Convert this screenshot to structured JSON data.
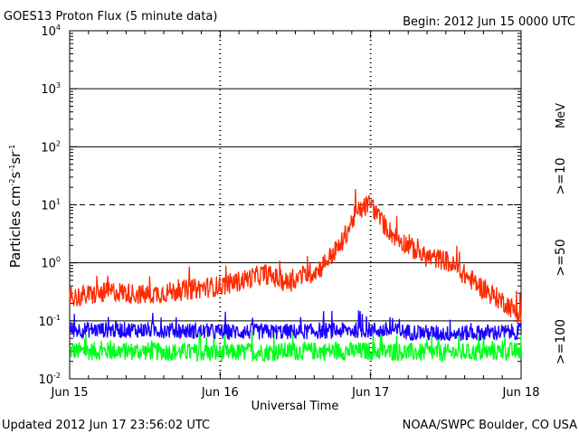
{
  "chart_data": {
    "type": "line",
    "title": "GOES13 Proton Flux (5 minute data)",
    "begin": "Begin: 2012 Jun 15 0000 UTC",
    "xlabel": "Universal Time",
    "ylabel": {
      "main": "Particles cm",
      "e1": "-2",
      "s1": "s",
      "e2": "-1",
      "sr": "sr",
      "e3": "-1"
    },
    "updated": "Updated 2012 Jun 17 23:56:02 UTC",
    "credit": "NOAA/SWPC Boulder, CO USA",
    "x_ticks": [
      "Jun 15",
      "Jun 16",
      "Jun 17",
      "Jun 18"
    ],
    "xlim_days": [
      0,
      3
    ],
    "y_scale": "log",
    "y_ticks": [
      {
        "base": "10",
        "exp": "-2"
      },
      {
        "base": "10",
        "exp": "-1"
      },
      {
        "base": "10",
        "exp": "0"
      },
      {
        "base": "10",
        "exp": "1"
      },
      {
        "base": "10",
        "exp": "2"
      },
      {
        "base": "10",
        "exp": "3"
      },
      {
        "base": "10",
        "exp": "4"
      }
    ],
    "ylim_log10": [
      -2,
      4
    ],
    "solid_gridlines_log10": [
      -1,
      0,
      2,
      3
    ],
    "dashed_gridlines_log10": [
      1
    ],
    "units_label": "MeV",
    "series": [
      {
        "name": ">=10",
        "color": "#ff2a00",
        "noise_log10": 0.18,
        "points": [
          [
            0.0,
            0.25
          ],
          [
            0.3,
            0.32
          ],
          [
            0.5,
            0.28
          ],
          [
            1.0,
            0.4
          ],
          [
            1.15,
            0.5
          ],
          [
            1.3,
            0.65
          ],
          [
            1.45,
            0.45
          ],
          [
            1.55,
            0.6
          ],
          [
            1.65,
            0.75
          ],
          [
            1.8,
            2.0
          ],
          [
            1.9,
            7.0
          ],
          [
            2.0,
            11.0
          ],
          [
            2.05,
            6.0
          ],
          [
            2.15,
            3.0
          ],
          [
            2.25,
            2.0
          ],
          [
            2.35,
            1.3
          ],
          [
            2.5,
            1.1
          ],
          [
            2.6,
            0.7
          ],
          [
            2.75,
            0.35
          ],
          [
            2.9,
            0.2
          ],
          [
            3.0,
            0.12
          ]
        ]
      },
      {
        "name": ">=50",
        "color": "#1a00ff",
        "noise_log10": 0.14,
        "points": [
          [
            0.0,
            0.07
          ],
          [
            0.5,
            0.07
          ],
          [
            1.0,
            0.065
          ],
          [
            1.5,
            0.065
          ],
          [
            2.0,
            0.07
          ],
          [
            2.5,
            0.06
          ],
          [
            3.0,
            0.065
          ]
        ]
      },
      {
        "name": ">=100",
        "color": "#00ff1a",
        "noise_log10": 0.16,
        "points": [
          [
            0.0,
            0.03
          ],
          [
            0.5,
            0.03
          ],
          [
            1.0,
            0.028
          ],
          [
            1.5,
            0.03
          ],
          [
            2.0,
            0.03
          ],
          [
            2.5,
            0.028
          ],
          [
            3.0,
            0.03
          ]
        ]
      }
    ]
  }
}
